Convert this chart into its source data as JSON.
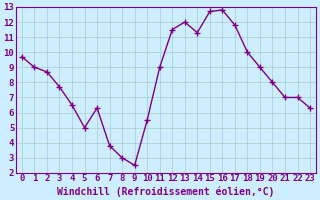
{
  "x": [
    0,
    1,
    2,
    3,
    4,
    5,
    6,
    7,
    8,
    9,
    10,
    11,
    12,
    13,
    14,
    15,
    16,
    17,
    18,
    19,
    20,
    21,
    22,
    23
  ],
  "y": [
    9.7,
    9.0,
    8.7,
    7.7,
    6.5,
    5.0,
    6.3,
    3.8,
    3.0,
    2.5,
    5.5,
    9.0,
    11.5,
    12.0,
    11.3,
    12.7,
    12.8,
    11.8,
    10.0,
    9.0,
    8.0,
    7.0,
    7.0,
    6.3
  ],
  "line_color": "#800080",
  "marker": "P",
  "markersize": 3,
  "linewidth": 1.0,
  "xlabel": "Windchill (Refroidissement éolien,°C)",
  "xlim": [
    -0.5,
    23.5
  ],
  "ylim": [
    2,
    13
  ],
  "yticks": [
    2,
    3,
    4,
    5,
    6,
    7,
    8,
    9,
    10,
    11,
    12,
    13
  ],
  "xticks": [
    0,
    1,
    2,
    3,
    4,
    5,
    6,
    7,
    8,
    9,
    10,
    11,
    12,
    13,
    14,
    15,
    16,
    17,
    18,
    19,
    20,
    21,
    22,
    23
  ],
  "bg_color": "#cceeff",
  "grid_color": "#aacccc",
  "tick_labelsize": 6.5,
  "xlabel_fontsize": 7,
  "xlabel_color": "#800080",
  "tick_color": "#800080",
  "spine_color": "#800080"
}
